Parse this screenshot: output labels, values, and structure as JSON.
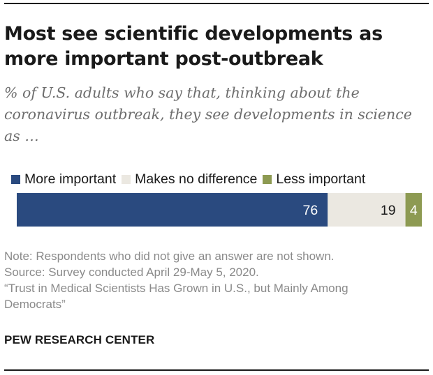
{
  "title": "Most see scientific developments as more important post-outbreak",
  "subtitle": "% of U.S. adults who say that, thinking about the coronavirus outbreak, they see developments in science as …",
  "chart_data": {
    "type": "bar",
    "orientation": "horizontal",
    "stacked": true,
    "categories": [
      ""
    ],
    "series": [
      {
        "name": "More important",
        "values": [
          76
        ],
        "color": "#2a4a7f",
        "label_color": "#ffffff"
      },
      {
        "name": "Makes no difference",
        "values": [
          19
        ],
        "color": "#ebe8e1",
        "label_color": "#1a1a1a"
      },
      {
        "name": "Less important",
        "values": [
          4
        ],
        "color": "#8d9a52",
        "label_color": "#ffffff"
      }
    ],
    "xlim": [
      0,
      99
    ],
    "grid": false,
    "legend": "top-left"
  },
  "notes": {
    "note": "Note: Respondents who did not give an answer are not shown.",
    "source": "Source: Survey conducted April 29-May 5, 2020.",
    "report_line1": "“Trust in Medical Scientists Has Grown in U.S., but Mainly Among",
    "report_line2": "Democrats”"
  },
  "brand": "PEW RESEARCH CENTER"
}
